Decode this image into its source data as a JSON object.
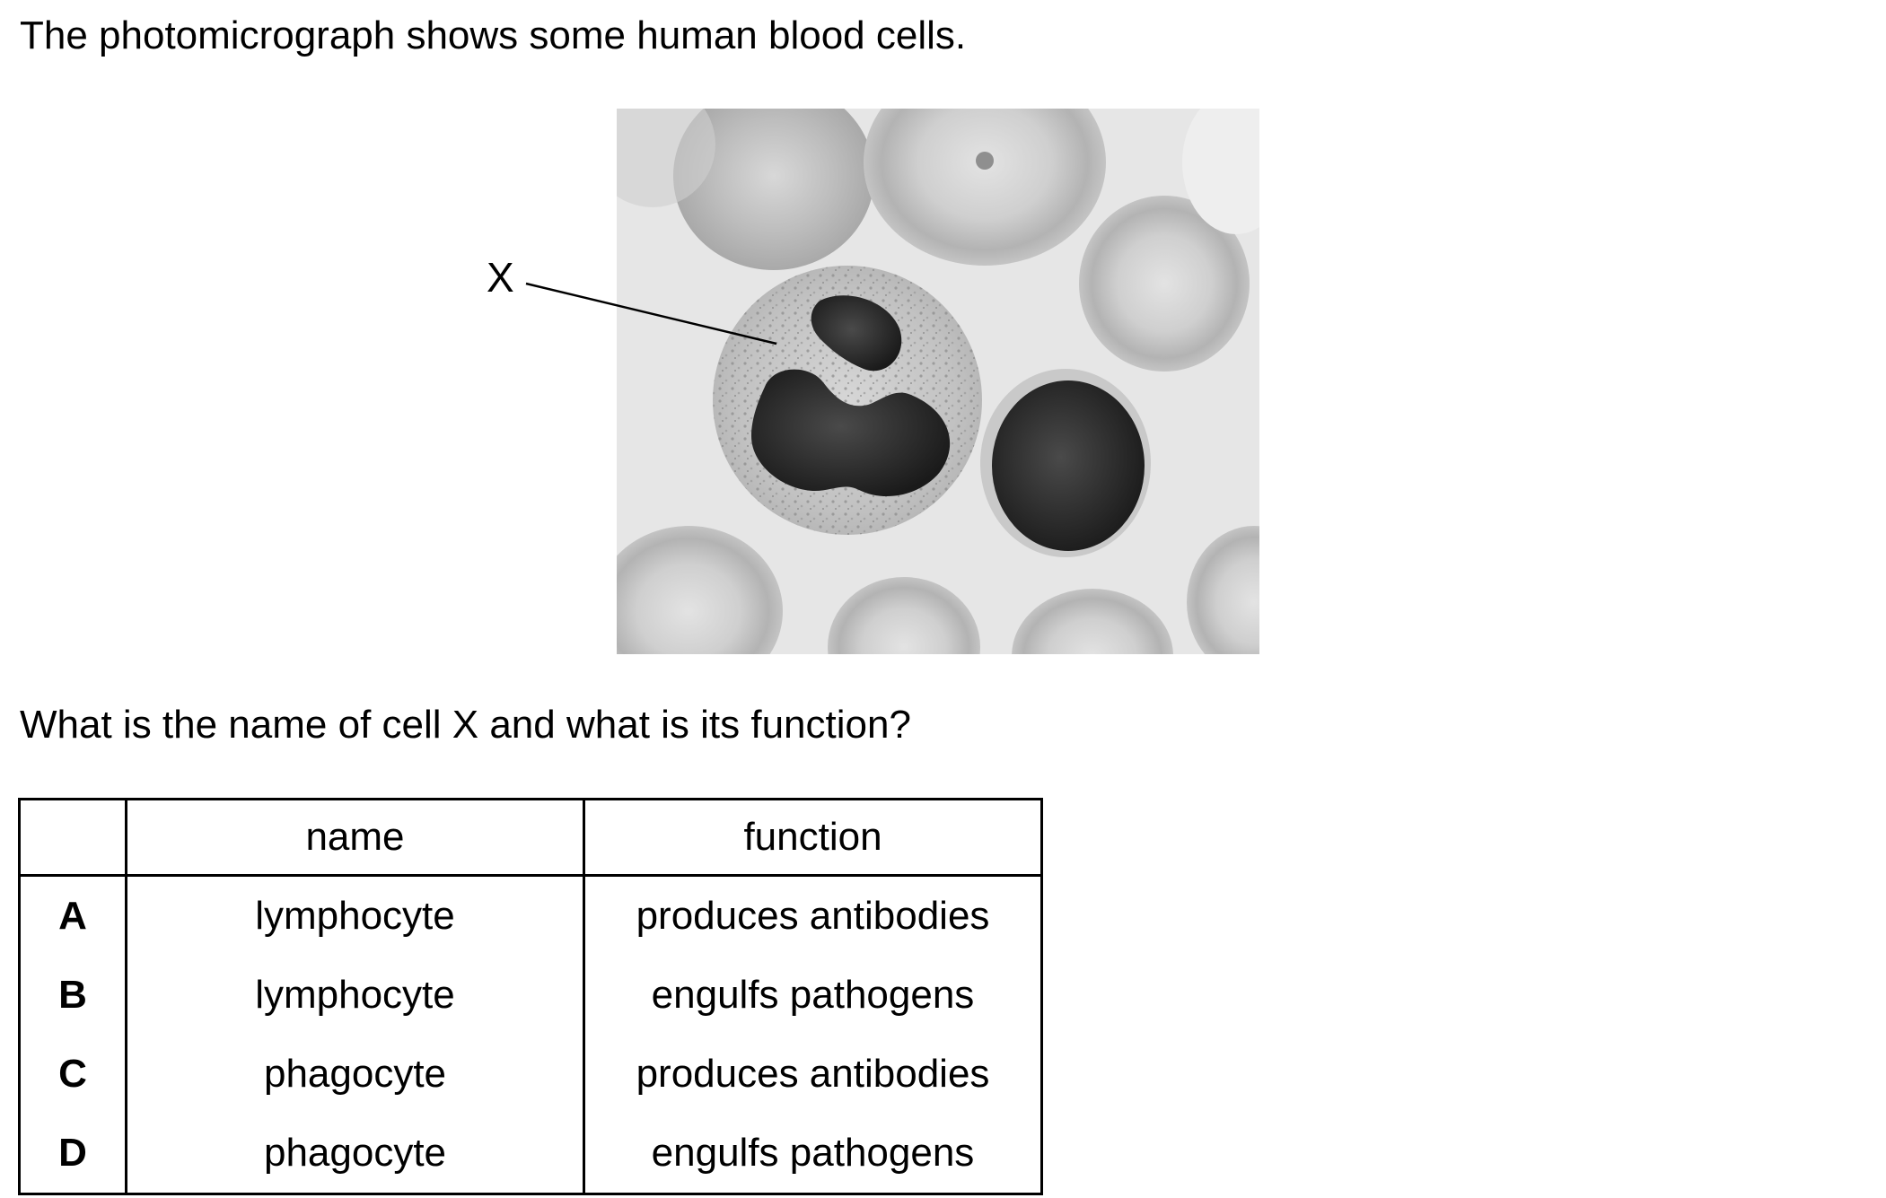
{
  "intro": "The photomicrograph shows some human blood cells.",
  "figure": {
    "label": "X"
  },
  "question": "What is the name of cell X and what is its function?",
  "table": {
    "headers": [
      "",
      "name",
      "function"
    ],
    "rows": [
      {
        "key": "A",
        "name": "lymphocyte",
        "function": "produces antibodies"
      },
      {
        "key": "B",
        "name": "lymphocyte",
        "function": "engulfs pathogens"
      },
      {
        "key": "C",
        "name": "phagocyte",
        "function": "produces antibodies"
      },
      {
        "key": "D",
        "name": "phagocyte",
        "function": "engulfs pathogens"
      }
    ]
  }
}
